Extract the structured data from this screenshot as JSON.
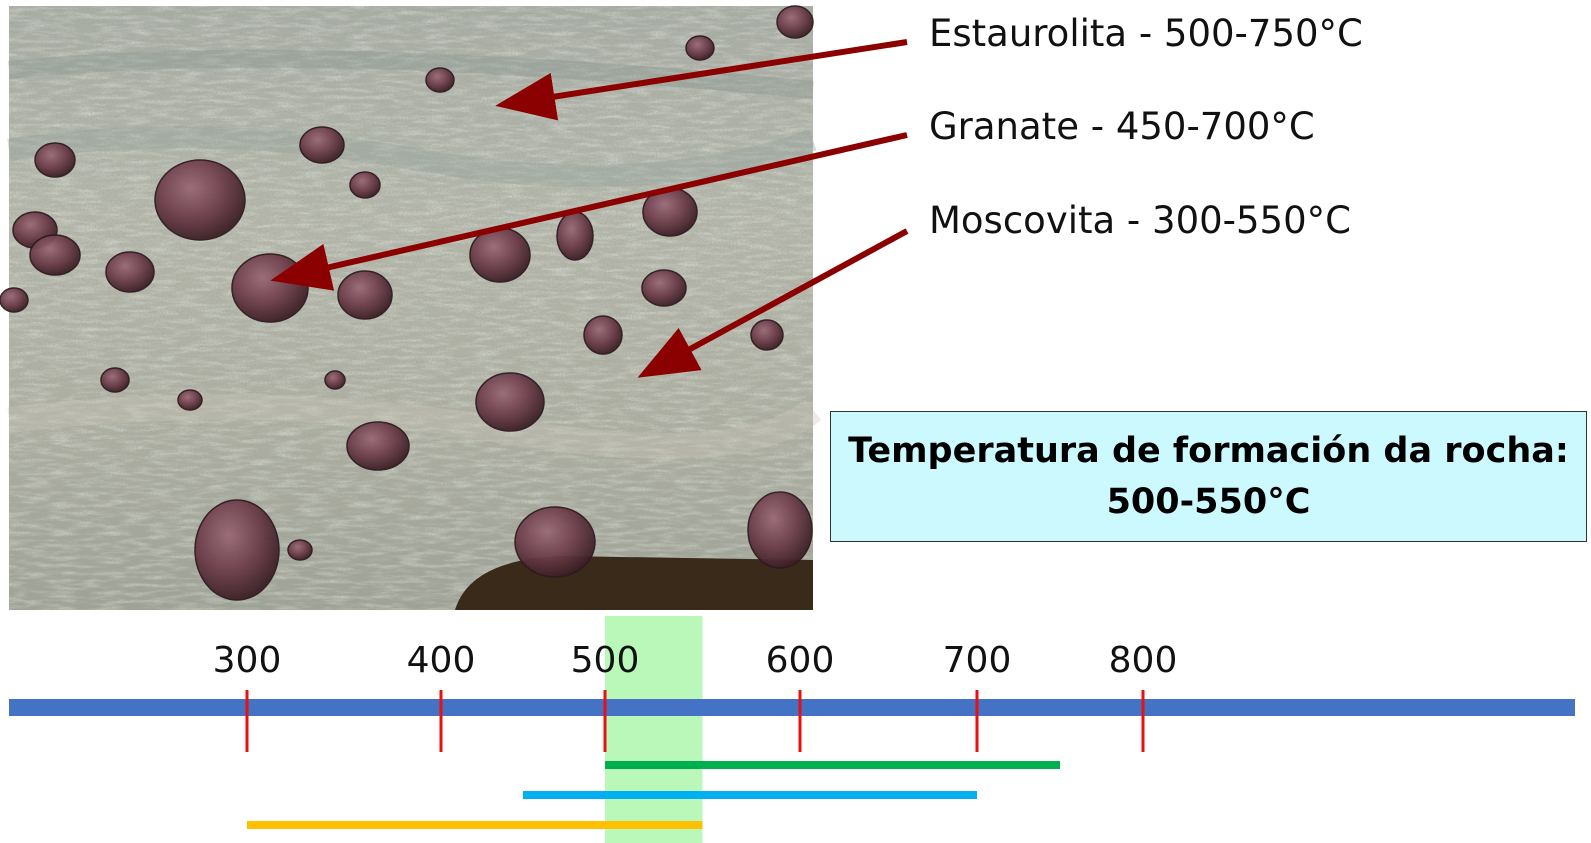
{
  "minerals": [
    {
      "label": "Estaurolita -  500-750°C",
      "name": "Estaurolita",
      "min": 500,
      "max": 750,
      "bar_color": "#00b050"
    },
    {
      "label": "Granate - 450-700°C",
      "name": "Granate",
      "min": 450,
      "max": 700,
      "bar_color": "#00b0f0"
    },
    {
      "label": "Moscovita - 300-550°C",
      "name": "Moscovita",
      "min": 300,
      "max": 550,
      "bar_color": "#ffc000"
    }
  ],
  "result": {
    "line1": "Temperatura de formación da rocha:",
    "line2": "500-550°C",
    "min": 500,
    "max": 550,
    "highlight_color": "#7ff27f"
  },
  "axis": {
    "ticks": [
      "300",
      "400",
      "500",
      "600",
      "700",
      "800"
    ],
    "axis_color": "#4472c4",
    "tick_color": "#e81010"
  },
  "colors": {
    "arrow": "#8b0000"
  }
}
